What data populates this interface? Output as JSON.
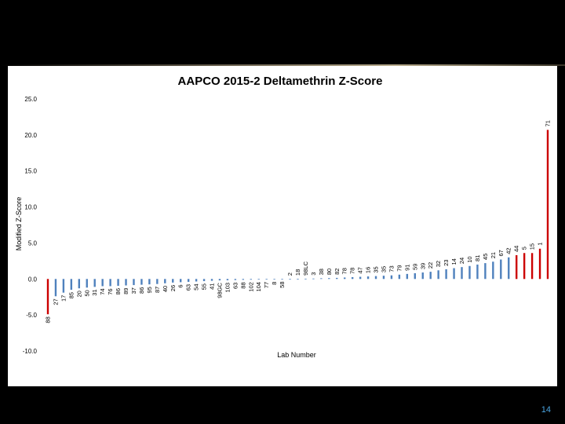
{
  "page": {
    "number": "14"
  },
  "chart_data": {
    "type": "bar",
    "title": "AAPCO 2015-2 Deltamethrin Z-Score",
    "xlabel": "Lab Number",
    "ylabel": "Modified Z-Score",
    "ylim": [
      -10,
      25
    ],
    "yticks": [
      "25.0",
      "20.0",
      "15.0",
      "10.0",
      "5.0",
      "0.0",
      "-5.0",
      "-10.0"
    ],
    "ytick_values": [
      25,
      20,
      15,
      10,
      5,
      0,
      -5,
      -10
    ],
    "grid": false,
    "legend": "none",
    "colors": {
      "normal": "#4f81bd",
      "outlier": "#cc0000"
    },
    "categories": [
      "88",
      "27",
      "17",
      "85",
      "20",
      "50",
      "31",
      "74",
      "76",
      "86",
      "89",
      "37",
      "86",
      "95",
      "87",
      "40",
      "26",
      "6",
      "63",
      "54",
      "55",
      "41",
      "98GC",
      "103",
      "63",
      "88",
      "102",
      "104",
      "77",
      "8",
      "58",
      "2",
      "18",
      "98LC",
      "3",
      "38",
      "80",
      "82",
      "78",
      "78",
      "47",
      "16",
      "35",
      "35",
      "73",
      "79",
      "91",
      "59",
      "39",
      "22",
      "32",
      "23",
      "14",
      "24",
      "10",
      "81",
      "45",
      "21",
      "67",
      "42",
      "44",
      "5",
      "15",
      "1",
      "71"
    ],
    "values": [
      -4.9,
      -2.4,
      -1.9,
      -1.5,
      -1.3,
      -1.2,
      -1.1,
      -1.0,
      -1.0,
      -0.95,
      -0.9,
      -0.85,
      -0.8,
      -0.75,
      -0.7,
      -0.6,
      -0.5,
      -0.45,
      -0.4,
      -0.35,
      -0.3,
      -0.25,
      -0.2,
      -0.18,
      -0.15,
      -0.12,
      -0.1,
      -0.08,
      -0.06,
      -0.04,
      -0.02,
      0.0,
      0.02,
      0.04,
      0.06,
      0.1,
      0.12,
      0.15,
      0.2,
      0.25,
      0.3,
      0.35,
      0.4,
      0.45,
      0.5,
      0.6,
      0.7,
      0.8,
      0.9,
      1.0,
      1.2,
      1.35,
      1.5,
      1.65,
      1.8,
      2.0,
      2.2,
      2.4,
      2.7,
      3.0,
      3.3,
      3.6,
      3.6,
      4.2,
      20.7
    ],
    "outliers": [
      0,
      60,
      61,
      62,
      63,
      64
    ]
  }
}
